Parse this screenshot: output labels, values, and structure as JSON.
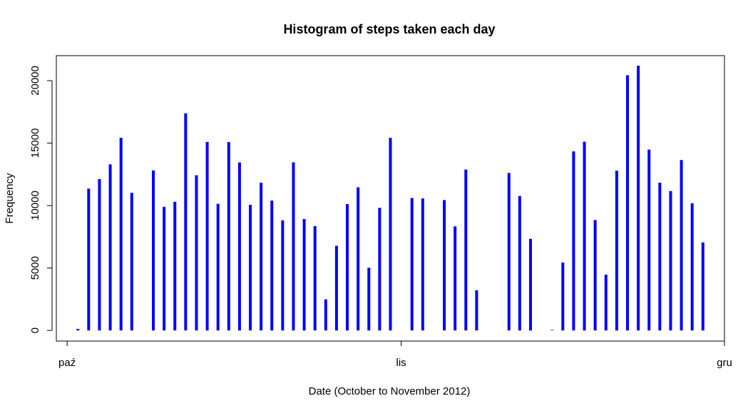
{
  "chart_data": {
    "type": "bar",
    "title": "Histogram of steps taken each day",
    "xlabel": "Date (October to November 2012)",
    "ylabel": "Frequency",
    "x_start_date": "2012-10-01",
    "x_tick_labels": [
      {
        "label": "paź",
        "date": "2012-10-01"
      },
      {
        "label": "lis",
        "date": "2012-11-01"
      },
      {
        "label": "gru",
        "date": "2012-12-01"
      }
    ],
    "xlim_dates": [
      "2012-09-30",
      "2012-12-01"
    ],
    "y_ticks": [
      0,
      5000,
      10000,
      15000,
      20000
    ],
    "ylim": [
      -850,
      22000
    ],
    "bar_color": "#0000ff",
    "grid": false,
    "series": [
      {
        "dates": [
          "2012-10-01",
          "2012-10-02",
          "2012-10-03",
          "2012-10-04",
          "2012-10-05",
          "2012-10-06",
          "2012-10-07",
          "2012-10-08",
          "2012-10-09",
          "2012-10-10",
          "2012-10-11",
          "2012-10-12",
          "2012-10-13",
          "2012-10-14",
          "2012-10-15",
          "2012-10-16",
          "2012-10-17",
          "2012-10-18",
          "2012-10-19",
          "2012-10-20",
          "2012-10-21",
          "2012-10-22",
          "2012-10-23",
          "2012-10-24",
          "2012-10-25",
          "2012-10-26",
          "2012-10-27",
          "2012-10-28",
          "2012-10-29",
          "2012-10-30",
          "2012-10-31",
          "2012-11-01",
          "2012-11-02",
          "2012-11-03",
          "2012-11-04",
          "2012-11-05",
          "2012-11-06",
          "2012-11-07",
          "2012-11-08",
          "2012-11-09",
          "2012-11-10",
          "2012-11-11",
          "2012-11-12",
          "2012-11-13",
          "2012-11-14",
          "2012-11-15",
          "2012-11-16",
          "2012-11-17",
          "2012-11-18",
          "2012-11-19",
          "2012-11-20",
          "2012-11-21",
          "2012-11-22",
          "2012-11-23",
          "2012-11-24",
          "2012-11-25",
          "2012-11-26",
          "2012-11-27",
          "2012-11-28",
          "2012-11-29",
          "2012-11-30"
        ],
        "values": [
          0,
          126,
          11352,
          12116,
          13294,
          15420,
          11015,
          0,
          12811,
          9900,
          10304,
          17382,
          12426,
          15098,
          10139,
          15084,
          13452,
          10056,
          11829,
          10395,
          8821,
          13460,
          8918,
          8355,
          2492,
          6778,
          10119,
          11458,
          5018,
          9819,
          15414,
          0,
          10600,
          10571,
          0,
          10439,
          8334,
          12883,
          3219,
          0,
          0,
          12608,
          10765,
          7336,
          0,
          41,
          5441,
          14339,
          15110,
          8841,
          4472,
          12787,
          20427,
          21194,
          14478,
          11834,
          11162,
          13646,
          10183,
          7047,
          0
        ]
      }
    ]
  }
}
